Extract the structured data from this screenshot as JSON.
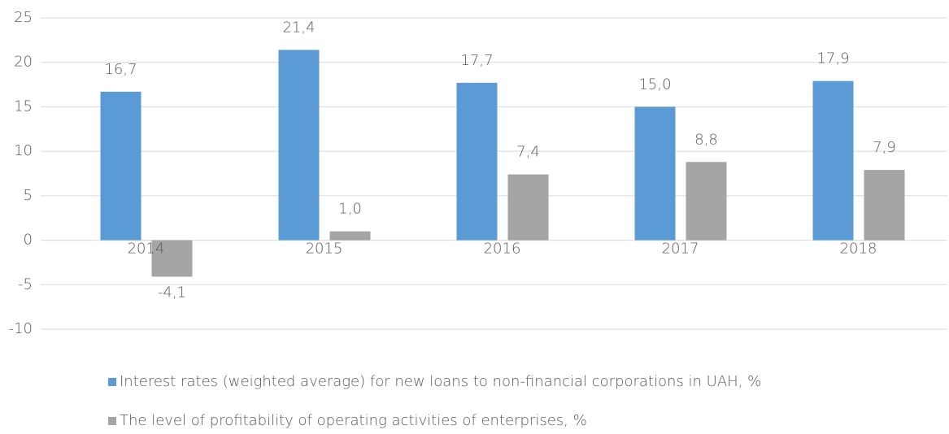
{
  "chart_data": {
    "type": "bar",
    "categories": [
      "2014",
      "2015",
      "2016",
      "2017",
      "2018"
    ],
    "series": [
      {
        "name": "Interest rates (weighted average) for new loans to non-financial corporations in UAH, %",
        "color": "#5b9bd5",
        "values": [
          16.7,
          21.4,
          17.7,
          15.0,
          17.9
        ],
        "value_labels": [
          "16,7",
          "21,4",
          "17,7",
          "15,0",
          "17,9"
        ]
      },
      {
        "name": "The level of profitability of operating activities of enterprises, %",
        "color": "#a5a5a5",
        "values": [
          -4.1,
          1.0,
          7.4,
          8.8,
          7.9
        ],
        "value_labels": [
          "-4,1",
          "1,0",
          "7,4",
          "8,8",
          "7,9"
        ]
      }
    ],
    "ylim": [
      -10,
      25
    ],
    "yticks": [
      -10,
      -5,
      0,
      5,
      10,
      15,
      20,
      25
    ],
    "grid": true,
    "legend": "bottom"
  }
}
